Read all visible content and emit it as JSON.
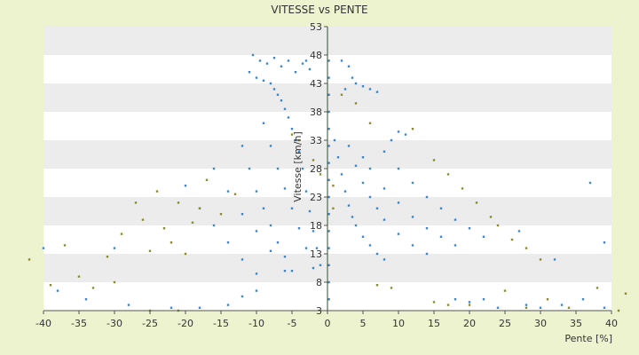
{
  "chart_data": {
    "type": "scatter",
    "title": "VITESSE vs PENTE",
    "xlabel": "Pente [%]",
    "ylabel": "Vitesse [km/h]",
    "xlim": [
      -40,
      40
    ],
    "ylim": [
      3,
      53
    ],
    "xticks": [
      -40,
      -35,
      -30,
      -25,
      -20,
      -15,
      -10,
      -5,
      0,
      5,
      10,
      15,
      20,
      25,
      30,
      35,
      40
    ],
    "yticks": [
      3,
      8,
      13,
      18,
      23,
      28,
      33,
      38,
      43,
      48,
      53
    ],
    "grid": "horizontal bands",
    "legend": "none",
    "colors": {
      "primary": "#3f86c8",
      "secondary": "#8b8a2e",
      "band": "#ececec"
    },
    "series": [
      {
        "marker_color": "#3f86c8",
        "points": [
          [
            -8.0,
            43.0
          ],
          [
            -7.5,
            42.0
          ],
          [
            -7.0,
            41.0
          ],
          [
            -6.5,
            40.0
          ],
          [
            -6.0,
            38.5
          ],
          [
            -5.5,
            37.0
          ],
          [
            -5.0,
            35.0
          ],
          [
            -4.5,
            33.0
          ],
          [
            -4.0,
            31.0
          ],
          [
            -3.5,
            28.0
          ],
          [
            -3.0,
            24.0
          ],
          [
            -2.5,
            20.5
          ],
          [
            -2.0,
            17.0
          ],
          [
            -1.5,
            14.0
          ],
          [
            -1.0,
            11.0
          ],
          [
            -9.0,
            36.0
          ],
          [
            -8.0,
            32.0
          ],
          [
            -7.0,
            28.0
          ],
          [
            -6.0,
            24.5
          ],
          [
            -5.0,
            21.0
          ],
          [
            -4.0,
            17.5
          ],
          [
            -3.0,
            14.0
          ],
          [
            -2.0,
            10.5
          ],
          [
            -12.0,
            32.0
          ],
          [
            -11.0,
            28.0
          ],
          [
            -10.0,
            24.0
          ],
          [
            -9.0,
            21.0
          ],
          [
            -8.0,
            18.0
          ],
          [
            -7.0,
            15.0
          ],
          [
            -6.0,
            12.5
          ],
          [
            -5.0,
            10.0
          ],
          [
            -16.0,
            28.0
          ],
          [
            -14.0,
            24.0
          ],
          [
            -12.0,
            20.0
          ],
          [
            -10.0,
            17.0
          ],
          [
            -8.0,
            13.5
          ],
          [
            -6.0,
            10.0
          ],
          [
            -20.0,
            25.0
          ],
          [
            -18.0,
            21.0
          ],
          [
            -16.0,
            18.0
          ],
          [
            -14.0,
            15.0
          ],
          [
            -12.0,
            12.0
          ],
          [
            -10.0,
            9.5
          ],
          [
            -10.5,
            48.0
          ],
          [
            -9.5,
            47.0
          ],
          [
            -8.5,
            46.5
          ],
          [
            -7.5,
            47.5
          ],
          [
            -6.5,
            46.0
          ],
          [
            -5.5,
            47.0
          ],
          [
            -4.5,
            45.0
          ],
          [
            -3.5,
            46.5
          ],
          [
            -11.0,
            45.0
          ],
          [
            -10.0,
            44.0
          ],
          [
            -9.0,
            43.5
          ],
          [
            -3.0,
            47.0
          ],
          [
            -2.5,
            45.5
          ],
          [
            1.0,
            33.0
          ],
          [
            1.5,
            30.0
          ],
          [
            2.0,
            27.0
          ],
          [
            2.5,
            24.0
          ],
          [
            3.0,
            21.5
          ],
          [
            3.5,
            19.5
          ],
          [
            4.0,
            18.0
          ],
          [
            5.0,
            16.0
          ],
          [
            6.0,
            14.5
          ],
          [
            7.0,
            13.0
          ],
          [
            8.0,
            12.0
          ],
          [
            3.0,
            32.0
          ],
          [
            4.0,
            28.5
          ],
          [
            5.0,
            25.5
          ],
          [
            6.0,
            23.0
          ],
          [
            7.0,
            21.0
          ],
          [
            8.0,
            19.0
          ],
          [
            10.0,
            16.5
          ],
          [
            12.0,
            14.5
          ],
          [
            14.0,
            13.0
          ],
          [
            5.0,
            30.0
          ],
          [
            6.0,
            28.0
          ],
          [
            8.0,
            24.5
          ],
          [
            10.0,
            22.0
          ],
          [
            12.0,
            19.5
          ],
          [
            14.0,
            17.5
          ],
          [
            16.0,
            16.0
          ],
          [
            18.0,
            14.5
          ],
          [
            8.0,
            31.0
          ],
          [
            10.0,
            28.0
          ],
          [
            12.0,
            25.5
          ],
          [
            14.0,
            23.0
          ],
          [
            16.0,
            21.0
          ],
          [
            18.0,
            19.0
          ],
          [
            20.0,
            17.5
          ],
          [
            22.0,
            16.0
          ],
          [
            2.0,
            47.0
          ],
          [
            3.0,
            46.0
          ],
          [
            3.5,
            44.0
          ],
          [
            4.0,
            43.0
          ],
          [
            5.0,
            42.5
          ],
          [
            2.5,
            42.0
          ],
          [
            6.0,
            42.0
          ],
          [
            7.0,
            41.5
          ],
          [
            10.0,
            34.5
          ],
          [
            11.0,
            34.0
          ],
          [
            9.0,
            33.0
          ],
          [
            18.0,
            5.0
          ],
          [
            20.0,
            4.5
          ],
          [
            22.0,
            5.0
          ],
          [
            24.0,
            3.5
          ],
          [
            28.0,
            4.0
          ],
          [
            30.0,
            3.5
          ],
          [
            33.0,
            4.0
          ],
          [
            36.0,
            5.0
          ],
          [
            39.0,
            3.5
          ],
          [
            -38.0,
            6.5
          ],
          [
            -34.0,
            5.0
          ],
          [
            -28.0,
            4.0
          ],
          [
            -22.0,
            3.5
          ],
          [
            -18.0,
            3.5
          ],
          [
            -14.0,
            4.0
          ],
          [
            -12.0,
            5.5
          ],
          [
            -10.0,
            6.5
          ],
          [
            0.2,
            5.0
          ],
          [
            0.2,
            8.0
          ],
          [
            0.2,
            11.0
          ],
          [
            0.2,
            14.0
          ],
          [
            0.2,
            17.0
          ],
          [
            0.2,
            20.0
          ],
          [
            0.2,
            23.0
          ],
          [
            0.2,
            26.0
          ],
          [
            0.2,
            29.0
          ],
          [
            0.2,
            32.0
          ],
          [
            0.2,
            35.0
          ],
          [
            0.2,
            38.0
          ],
          [
            0.2,
            41.0
          ],
          [
            0.2,
            44.0
          ],
          [
            0.2,
            47.0
          ],
          [
            37.0,
            25.5
          ],
          [
            39.0,
            15.0
          ],
          [
            -40.0,
            14.0
          ],
          [
            32.0,
            12.0
          ],
          [
            -30.0,
            14.0
          ],
          [
            27.0,
            17.0
          ]
        ]
      },
      {
        "marker_color": "#8b8a2e",
        "points": [
          [
            -42.0,
            12.0
          ],
          [
            -39.0,
            7.5
          ],
          [
            -37.0,
            14.5
          ],
          [
            -35.0,
            9.0
          ],
          [
            -33.0,
            7.0
          ],
          [
            -31.0,
            12.5
          ],
          [
            -30.0,
            8.0
          ],
          [
            -29.0,
            16.5
          ],
          [
            -27.0,
            22.0
          ],
          [
            -26.0,
            19.0
          ],
          [
            -25.0,
            13.5
          ],
          [
            -24.0,
            24.0
          ],
          [
            -23.0,
            17.5
          ],
          [
            -22.0,
            15.0
          ],
          [
            -21.0,
            22.0
          ],
          [
            -20.0,
            13.0
          ],
          [
            -19.0,
            18.5
          ],
          [
            -18.0,
            21.0
          ],
          [
            -17.0,
            26.0
          ],
          [
            -15.0,
            20.0
          ],
          [
            -13.0,
            23.5
          ],
          [
            -25.0,
            3.0
          ],
          [
            -21.0,
            3.0
          ],
          [
            -5.0,
            34.0
          ],
          [
            -4.0,
            33.0
          ],
          [
            -2.0,
            29.5
          ],
          [
            -1.0,
            27.0
          ],
          [
            0.8,
            25.0
          ],
          [
            0.8,
            21.0
          ],
          [
            2.0,
            41.0
          ],
          [
            4.0,
            39.5
          ],
          [
            6.0,
            36.0
          ],
          [
            12.0,
            35.0
          ],
          [
            15.0,
            29.5
          ],
          [
            17.0,
            27.0
          ],
          [
            19.0,
            24.5
          ],
          [
            21.0,
            22.0
          ],
          [
            23.0,
            19.5
          ],
          [
            24.0,
            18.0
          ],
          [
            26.0,
            15.5
          ],
          [
            28.0,
            14.0
          ],
          [
            30.0,
            12.0
          ],
          [
            20.0,
            4.0
          ],
          [
            25.0,
            6.5
          ],
          [
            28.0,
            3.5
          ],
          [
            31.0,
            5.0
          ],
          [
            34.0,
            3.5
          ],
          [
            38.0,
            7.0
          ],
          [
            41.0,
            3.0
          ],
          [
            42.0,
            6.0
          ],
          [
            7.0,
            7.5
          ],
          [
            9.0,
            7.0
          ],
          [
            15.0,
            4.5
          ],
          [
            17.0,
            4.0
          ]
        ]
      }
    ]
  }
}
